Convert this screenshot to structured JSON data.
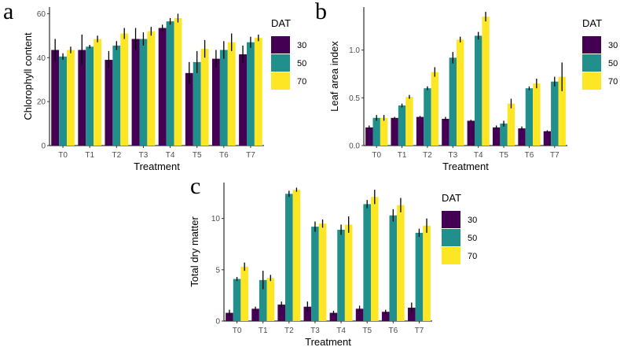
{
  "legend": {
    "title": "DAT",
    "entries": [
      {
        "label": "30",
        "color": "#440154"
      },
      {
        "label": "50",
        "color": "#21908C"
      },
      {
        "label": "70",
        "color": "#FDE725"
      }
    ]
  },
  "chart_data": [
    {
      "panel": "a",
      "type": "bar",
      "xlabel": "Treatment",
      "ylabel": "Chlorophyll content",
      "ylim": [
        0,
        63
      ],
      "yticks": [
        0,
        20,
        40,
        60
      ],
      "categories": [
        "T0",
        "T1",
        "T2",
        "T3",
        "T4",
        "T5",
        "T6",
        "T7"
      ],
      "series": [
        {
          "name": "30",
          "values": [
            43.5,
            43.5,
            39,
            48.5,
            53.5,
            33,
            39.5,
            41.5
          ],
          "errors": [
            5,
            7,
            4,
            5,
            1.5,
            5,
            4,
            4
          ]
        },
        {
          "name": "50",
          "values": [
            40.5,
            45,
            45.5,
            48.5,
            56.5,
            38,
            43.5,
            47
          ],
          "errors": [
            1.5,
            0.8,
            2,
            3,
            1.5,
            5,
            4,
            2.5
          ]
        },
        {
          "name": "70",
          "values": [
            43.5,
            48.5,
            51,
            52,
            58,
            44,
            47,
            49
          ],
          "errors": [
            1.5,
            1.5,
            2.5,
            2,
            2,
            4,
            4,
            1.5
          ]
        }
      ]
    },
    {
      "panel": "b",
      "type": "bar",
      "xlabel": "Treatment",
      "ylabel": "Leaf area index",
      "ylim": [
        0,
        1.45
      ],
      "yticks": [
        0.0,
        0.5,
        1.0
      ],
      "categories": [
        "T0",
        "T1",
        "T2",
        "T3",
        "T4",
        "T5",
        "T6",
        "T7"
      ],
      "series": [
        {
          "name": "30",
          "values": [
            0.19,
            0.29,
            0.3,
            0.28,
            0.26,
            0.19,
            0.18,
            0.15
          ],
          "errors": [
            0.02,
            0.01,
            0.01,
            0.02,
            0.01,
            0.02,
            0.02,
            0.01
          ]
        },
        {
          "name": "50",
          "values": [
            0.29,
            0.42,
            0.6,
            0.92,
            1.15,
            0.23,
            0.6,
            0.67
          ],
          "errors": [
            0.03,
            0.02,
            0.02,
            0.06,
            0.04,
            0.03,
            0.02,
            0.05
          ]
        },
        {
          "name": "70",
          "values": [
            0.29,
            0.51,
            0.77,
            1.11,
            1.35,
            0.44,
            0.65,
            0.72
          ],
          "errors": [
            0.03,
            0.02,
            0.05,
            0.03,
            0.05,
            0.05,
            0.05,
            0.15
          ]
        }
      ]
    },
    {
      "panel": "c",
      "type": "bar",
      "xlabel": "Treatment",
      "ylabel": "Total dry matter",
      "ylim": [
        0,
        13.5
      ],
      "yticks": [
        0,
        5,
        10
      ],
      "categories": [
        "T0",
        "T1",
        "T2",
        "T3",
        "T4",
        "T5",
        "T6",
        "T7"
      ],
      "series": [
        {
          "name": "30",
          "values": [
            0.8,
            1.2,
            1.6,
            1.4,
            0.8,
            1.2,
            0.9,
            1.3
          ],
          "errors": [
            0.3,
            0.2,
            0.3,
            0.5,
            0.2,
            0.3,
            0.2,
            0.5
          ]
        },
        {
          "name": "50",
          "values": [
            4.1,
            4.0,
            12.4,
            9.2,
            8.9,
            11.4,
            10.3,
            8.6
          ],
          "errors": [
            0.2,
            0.9,
            0.3,
            0.5,
            0.5,
            0.4,
            0.6,
            0.4
          ]
        },
        {
          "name": "70",
          "values": [
            5.3,
            4.2,
            12.8,
            9.5,
            9.4,
            12.1,
            11.3,
            9.3
          ],
          "errors": [
            0.4,
            0.3,
            0.2,
            0.4,
            0.8,
            0.7,
            0.7,
            0.7
          ]
        }
      ]
    }
  ]
}
